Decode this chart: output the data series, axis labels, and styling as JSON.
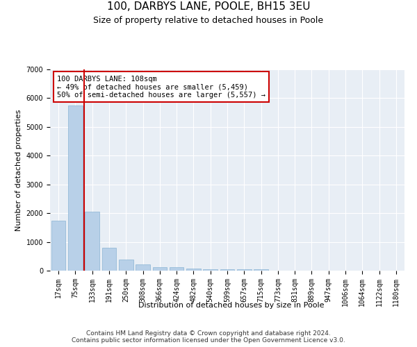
{
  "title1": "100, DARBYS LANE, POOLE, BH15 3EU",
  "title2": "Size of property relative to detached houses in Poole",
  "xlabel": "Distribution of detached houses by size in Poole",
  "ylabel": "Number of detached properties",
  "categories": [
    "17sqm",
    "75sqm",
    "133sqm",
    "191sqm",
    "250sqm",
    "308sqm",
    "366sqm",
    "424sqm",
    "482sqm",
    "540sqm",
    "599sqm",
    "657sqm",
    "715sqm",
    "773sqm",
    "831sqm",
    "889sqm",
    "947sqm",
    "1006sqm",
    "1064sqm",
    "1122sqm",
    "1180sqm"
  ],
  "values": [
    1750,
    5750,
    2050,
    800,
    375,
    220,
    120,
    110,
    80,
    60,
    55,
    50,
    50,
    0,
    0,
    0,
    0,
    0,
    0,
    0,
    0
  ],
  "bar_color": "#b8d0e8",
  "bar_edge_color": "#8ab4d4",
  "vline_x_pos": 1.5,
  "vline_color": "#cc0000",
  "annotation_text": "100 DARBYS LANE: 108sqm\n← 49% of detached houses are smaller (5,459)\n50% of semi-detached houses are larger (5,557) →",
  "annotation_box_color": "#ffffff",
  "annotation_box_edge_color": "#cc0000",
  "ylim": [
    0,
    7000
  ],
  "yticks": [
    0,
    1000,
    2000,
    3000,
    4000,
    5000,
    6000,
    7000
  ],
  "bg_color": "#e8eef5",
  "footer1": "Contains HM Land Registry data © Crown copyright and database right 2024.",
  "footer2": "Contains public sector information licensed under the Open Government Licence v3.0.",
  "title_fontsize": 11,
  "subtitle_fontsize": 9,
  "axis_label_fontsize": 8,
  "tick_fontsize": 7,
  "annotation_fontsize": 7.5,
  "footer_fontsize": 6.5
}
